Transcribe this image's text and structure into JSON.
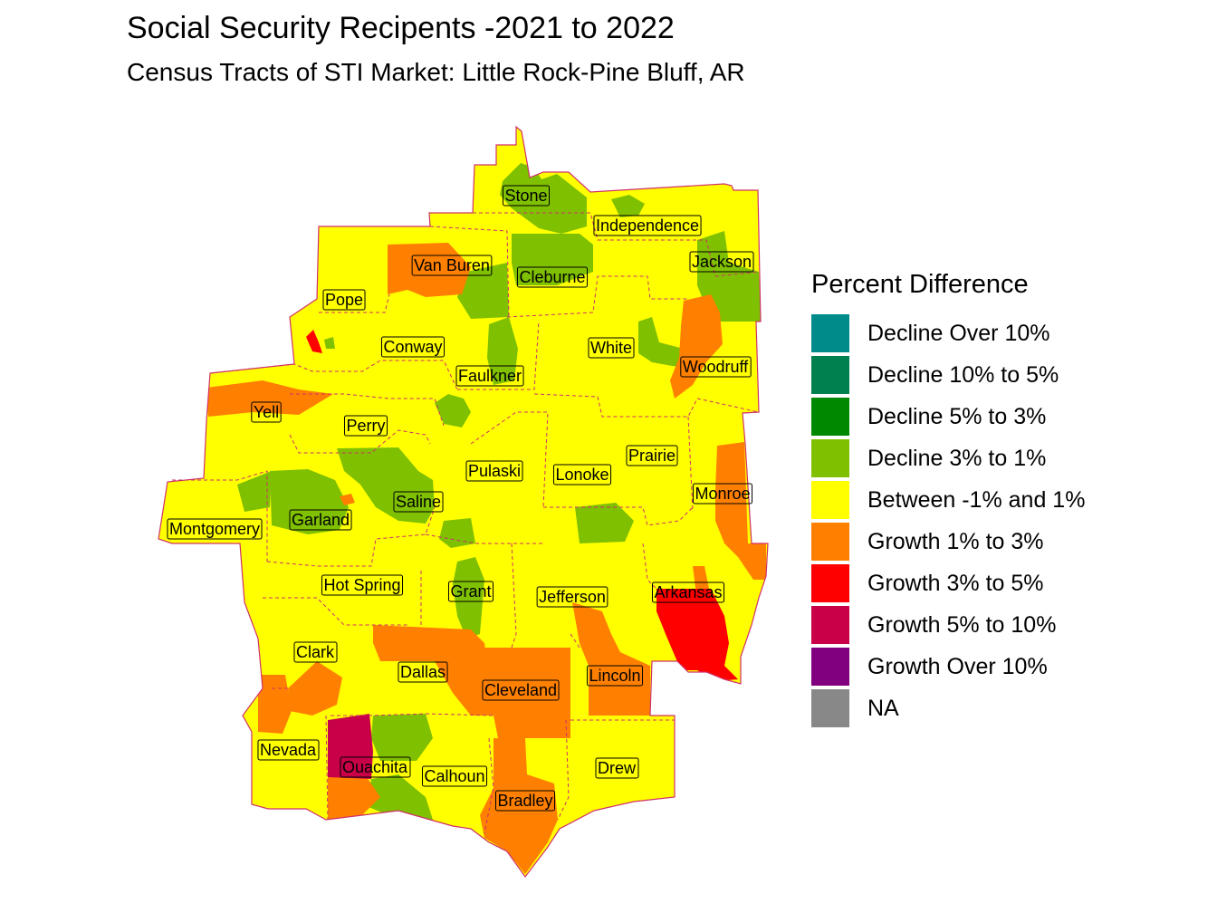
{
  "title": "Social Security Recipents -2021 to 2022",
  "subtitle": "Census Tracts of STI Market: Little Rock-Pine Bluff, AR",
  "legend": {
    "title": "Percent Difference",
    "items": [
      {
        "label": "Decline Over 10%",
        "color": "#008B8B"
      },
      {
        "label": "Decline 10% to 5%",
        "color": "#00804F"
      },
      {
        "label": "Decline 5% to 3%",
        "color": "#008800"
      },
      {
        "label": "Decline 3% to 1%",
        "color": "#7FC000"
      },
      {
        "label": "Between -1% and 1%",
        "color": "#FFFF00"
      },
      {
        "label": "Growth 1% to 3%",
        "color": "#FF8000"
      },
      {
        "label": "Growth 3% to 5%",
        "color": "#FF0000"
      },
      {
        "label": "Growth 5% to 10%",
        "color": "#C80048"
      },
      {
        "label": "Growth Over 10%",
        "color": "#800080"
      },
      {
        "label": "NA",
        "color": "#888888"
      }
    ]
  },
  "counties": [
    {
      "name": "Stone",
      "category": "Between -1% and 1%"
    },
    {
      "name": "Independence",
      "category": "Between -1% and 1%"
    },
    {
      "name": "Van Buren",
      "category": "Growth 1% to 3%"
    },
    {
      "name": "Cleburne",
      "category": "Decline 3% to 1%"
    },
    {
      "name": "Jackson",
      "category": "Decline 3% to 1%"
    },
    {
      "name": "Pope",
      "category": "Between -1% and 1%"
    },
    {
      "name": "Conway",
      "category": "Between -1% and 1%"
    },
    {
      "name": "White",
      "category": "Between -1% and 1%"
    },
    {
      "name": "Faulkner",
      "category": "Between -1% and 1%"
    },
    {
      "name": "Woodruff",
      "category": "Growth 1% to 3%"
    },
    {
      "name": "Yell",
      "category": "Between -1% and 1%"
    },
    {
      "name": "Perry",
      "category": "Between -1% and 1%"
    },
    {
      "name": "Prairie",
      "category": "Between -1% and 1%"
    },
    {
      "name": "Pulaski",
      "category": "Between -1% and 1%"
    },
    {
      "name": "Lonoke",
      "category": "Between -1% and 1%"
    },
    {
      "name": "Saline",
      "category": "Decline 3% to 1%"
    },
    {
      "name": "Monroe",
      "category": "Growth 1% to 3%"
    },
    {
      "name": "Garland",
      "category": "Decline 3% to 1%"
    },
    {
      "name": "Montgomery",
      "category": "Between -1% and 1%"
    },
    {
      "name": "Hot Spring",
      "category": "Between -1% and 1%"
    },
    {
      "name": "Grant",
      "category": "Decline 3% to 1%"
    },
    {
      "name": "Jefferson",
      "category": "Between -1% and 1%"
    },
    {
      "name": "Arkansas",
      "category": "Growth 3% to 5%"
    },
    {
      "name": "Clark",
      "category": "Between -1% and 1%"
    },
    {
      "name": "Dallas",
      "category": "Growth 1% to 3%"
    },
    {
      "name": "Cleveland",
      "category": "Growth 1% to 3%"
    },
    {
      "name": "Lincoln",
      "category": "Growth 1% to 3%"
    },
    {
      "name": "Nevada",
      "category": "Growth 1% to 3%"
    },
    {
      "name": "Ouachita",
      "category": "Growth 5% to 10%"
    },
    {
      "name": "Calhoun",
      "category": "Between -1% and 1%"
    },
    {
      "name": "Drew",
      "category": "Between -1% and 1%"
    },
    {
      "name": "Bradley",
      "category": "Growth 1% to 3%"
    }
  ]
}
